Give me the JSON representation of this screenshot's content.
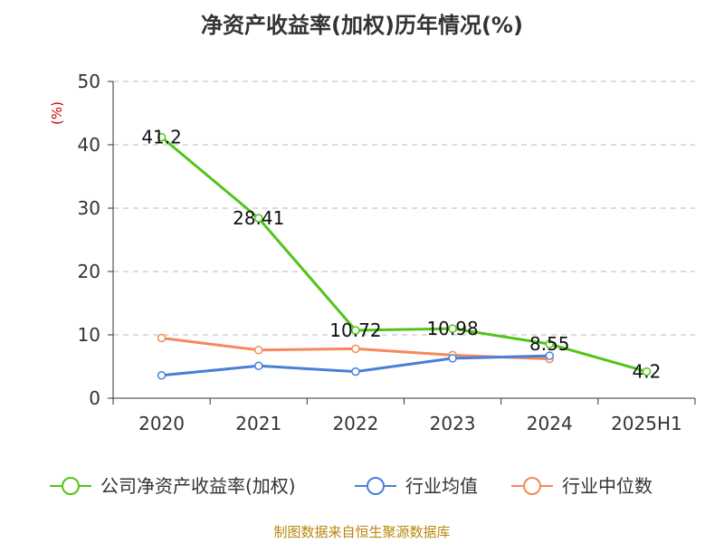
{
  "chart_data": {
    "type": "line",
    "title": "净资产收益率(加权)历年情况(%)",
    "ylabel": "(%)",
    "categories": [
      "2020",
      "2021",
      "2022",
      "2023",
      "2024",
      "2025H1"
    ],
    "ylim": [
      0,
      50
    ],
    "yticks": [
      0,
      10,
      20,
      30,
      40,
      50
    ],
    "grid": true,
    "legend_position": "bottom",
    "series": [
      {
        "name": "公司净资产收益率(加权)",
        "color": "#52c41a",
        "values": [
          41.2,
          28.41,
          10.72,
          10.98,
          8.55,
          4.2
        ],
        "labels": [
          "41.2",
          "28.41",
          "10.72",
          "10.98",
          "8.55",
          "4.2"
        ]
      },
      {
        "name": "行业均值",
        "color": "#4a7fd6",
        "values": [
          3.6,
          5.1,
          4.2,
          6.3,
          6.7,
          null
        ]
      },
      {
        "name": "行业中位数",
        "color": "#f5895b",
        "values": [
          9.5,
          7.6,
          7.8,
          6.8,
          6.2,
          null
        ]
      }
    ]
  },
  "source": "制图数据来自恒生聚源数据库"
}
